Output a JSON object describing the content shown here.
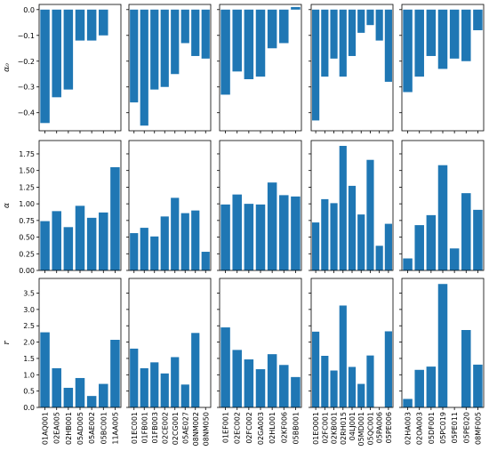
{
  "chart_data": {
    "type": "bar",
    "layout": "3x5 grid of subplots; rows share y-axis; columns share x categories",
    "bar_color": "#1f77b4",
    "grid": false,
    "rows": [
      {
        "ylabel": "α₀",
        "ylim": [
          -0.47,
          0.02
        ],
        "yticks": [
          0.0,
          -0.1,
          -0.2,
          -0.3,
          -0.4
        ],
        "ytick_labels": [
          "0.0",
          "−0.1",
          "−0.2",
          "−0.3",
          "−0.4"
        ]
      },
      {
        "ylabel": "α",
        "ylim": [
          0,
          1.95
        ],
        "yticks": [
          0.0,
          0.25,
          0.5,
          0.75,
          1.0,
          1.25,
          1.5,
          1.75
        ],
        "ytick_labels": [
          "0.00",
          "0.25",
          "0.50",
          "0.75",
          "1.00",
          "1.25",
          "1.50",
          "1.75"
        ]
      },
      {
        "ylabel": "r",
        "ylim": [
          0,
          3.95
        ],
        "yticks": [
          0.0,
          0.5,
          1.0,
          1.5,
          2.0,
          2.5,
          3.0,
          3.5
        ],
        "ytick_labels": [
          "0.0",
          "0.5",
          "1.0",
          "1.5",
          "2.0",
          "2.5",
          "3.0",
          "3.5"
        ]
      }
    ],
    "columns": [
      {
        "categories": [
          "01AQ001",
          "02EA005",
          "02HB001",
          "05AD005",
          "05AE002",
          "05BC001",
          "11AA005"
        ],
        "series": [
          {
            "values": [
              -0.44,
              -0.34,
              -0.31,
              -0.12,
              -0.12,
              -0.1,
              0.0
            ]
          },
          {
            "values": [
              0.74,
              0.89,
              0.65,
              0.97,
              0.79,
              0.87,
              1.55
            ]
          },
          {
            "values": [
              2.3,
              1.2,
              0.6,
              0.9,
              0.35,
              0.72,
              2.07
            ]
          }
        ]
      },
      {
        "categories": [
          "01EC001",
          "01FB001",
          "01FB003",
          "02CE002",
          "02CG001",
          "05AE027",
          "08NM002",
          "08NM050"
        ],
        "series": [
          {
            "values": [
              -0.36,
              -0.45,
              -0.31,
              -0.3,
              -0.25,
              -0.13,
              -0.18,
              -0.19
            ]
          },
          {
            "values": [
              0.56,
              0.64,
              0.51,
              0.81,
              1.09,
              0.86,
              0.9,
              0.28
            ]
          },
          {
            "values": [
              1.8,
              1.2,
              1.38,
              1.04,
              1.54,
              0.7,
              2.28,
              0.0
            ]
          }
        ]
      },
      {
        "categories": [
          "01EF001",
          "02EC002",
          "02FC002",
          "02GA003",
          "02HL001",
          "02KF006",
          "05BB001"
        ],
        "series": [
          {
            "values": [
              -0.33,
              -0.24,
              -0.27,
              -0.26,
              -0.15,
              -0.13,
              0.01
            ]
          },
          {
            "values": [
              0.99,
              1.14,
              1.0,
              0.99,
              1.32,
              1.13,
              1.11
            ]
          },
          {
            "values": [
              2.45,
              1.76,
              1.47,
              1.17,
              1.63,
              1.3,
              0.93
            ]
          }
        ]
      },
      {
        "categories": [
          "01EO001",
          "02FC001",
          "02KB001",
          "02RH015",
          "04LJ001",
          "05MD001",
          "05QC001",
          "05PA006",
          "05PE006"
        ],
        "series": [
          {
            "values": [
              -0.43,
              -0.26,
              -0.19,
              -0.26,
              -0.18,
              -0.09,
              -0.06,
              -0.12,
              -0.28
            ]
          },
          {
            "values": [
              0.72,
              1.07,
              1.01,
              1.87,
              1.27,
              0.84,
              1.66,
              0.37,
              0.7
            ]
          },
          {
            "values": [
              2.32,
              1.58,
              1.13,
              3.12,
              1.24,
              0.72,
              1.59,
              0.0,
              2.33
            ]
          }
        ]
      },
      {
        "categories": [
          "02HA003",
          "02OA003",
          "05DF001",
          "05PC019",
          "05PE011",
          "05PE020",
          "08MF005"
        ],
        "series": [
          {
            "values": [
              -0.32,
              -0.26,
              -0.18,
              -0.23,
              -0.19,
              -0.2,
              -0.08
            ]
          },
          {
            "values": [
              0.18,
              0.68,
              0.83,
              1.58,
              0.33,
              1.16,
              0.91
            ]
          },
          {
            "values": [
              0.26,
              1.15,
              1.25,
              3.78,
              0.0,
              2.37,
              1.31
            ]
          }
        ]
      }
    ]
  }
}
